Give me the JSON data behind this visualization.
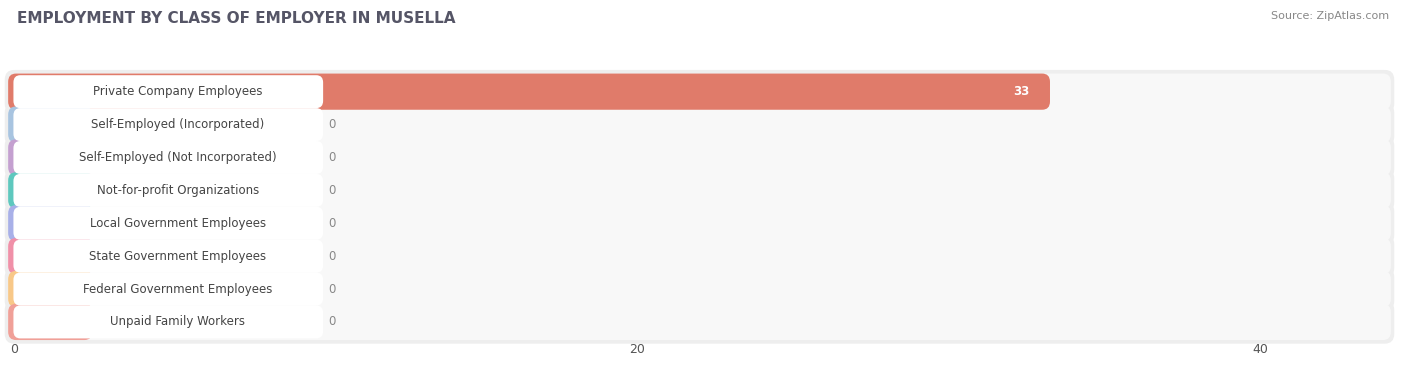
{
  "title": "EMPLOYMENT BY CLASS OF EMPLOYER IN MUSELLA",
  "source": "Source: ZipAtlas.com",
  "categories": [
    "Private Company Employees",
    "Self-Employed (Incorporated)",
    "Self-Employed (Not Incorporated)",
    "Not-for-profit Organizations",
    "Local Government Employees",
    "State Government Employees",
    "Federal Government Employees",
    "Unpaid Family Workers"
  ],
  "values": [
    33,
    0,
    0,
    0,
    0,
    0,
    0,
    0
  ],
  "bar_colors": [
    "#e07b6a",
    "#a8c4e0",
    "#c4a0d0",
    "#5ec8be",
    "#a8b0e8",
    "#f090a8",
    "#f8c888",
    "#f0a098"
  ],
  "row_bg_color": "#eeeeee",
  "row_inner_color": "#f8f8f8",
  "xlim": [
    0,
    44
  ],
  "xticks": [
    0,
    20,
    40
  ],
  "title_fontsize": 11,
  "bar_height": 0.72,
  "fig_bg": "#ffffff",
  "value_color_on_bar": "#ffffff",
  "value_color_zero": "#888888"
}
